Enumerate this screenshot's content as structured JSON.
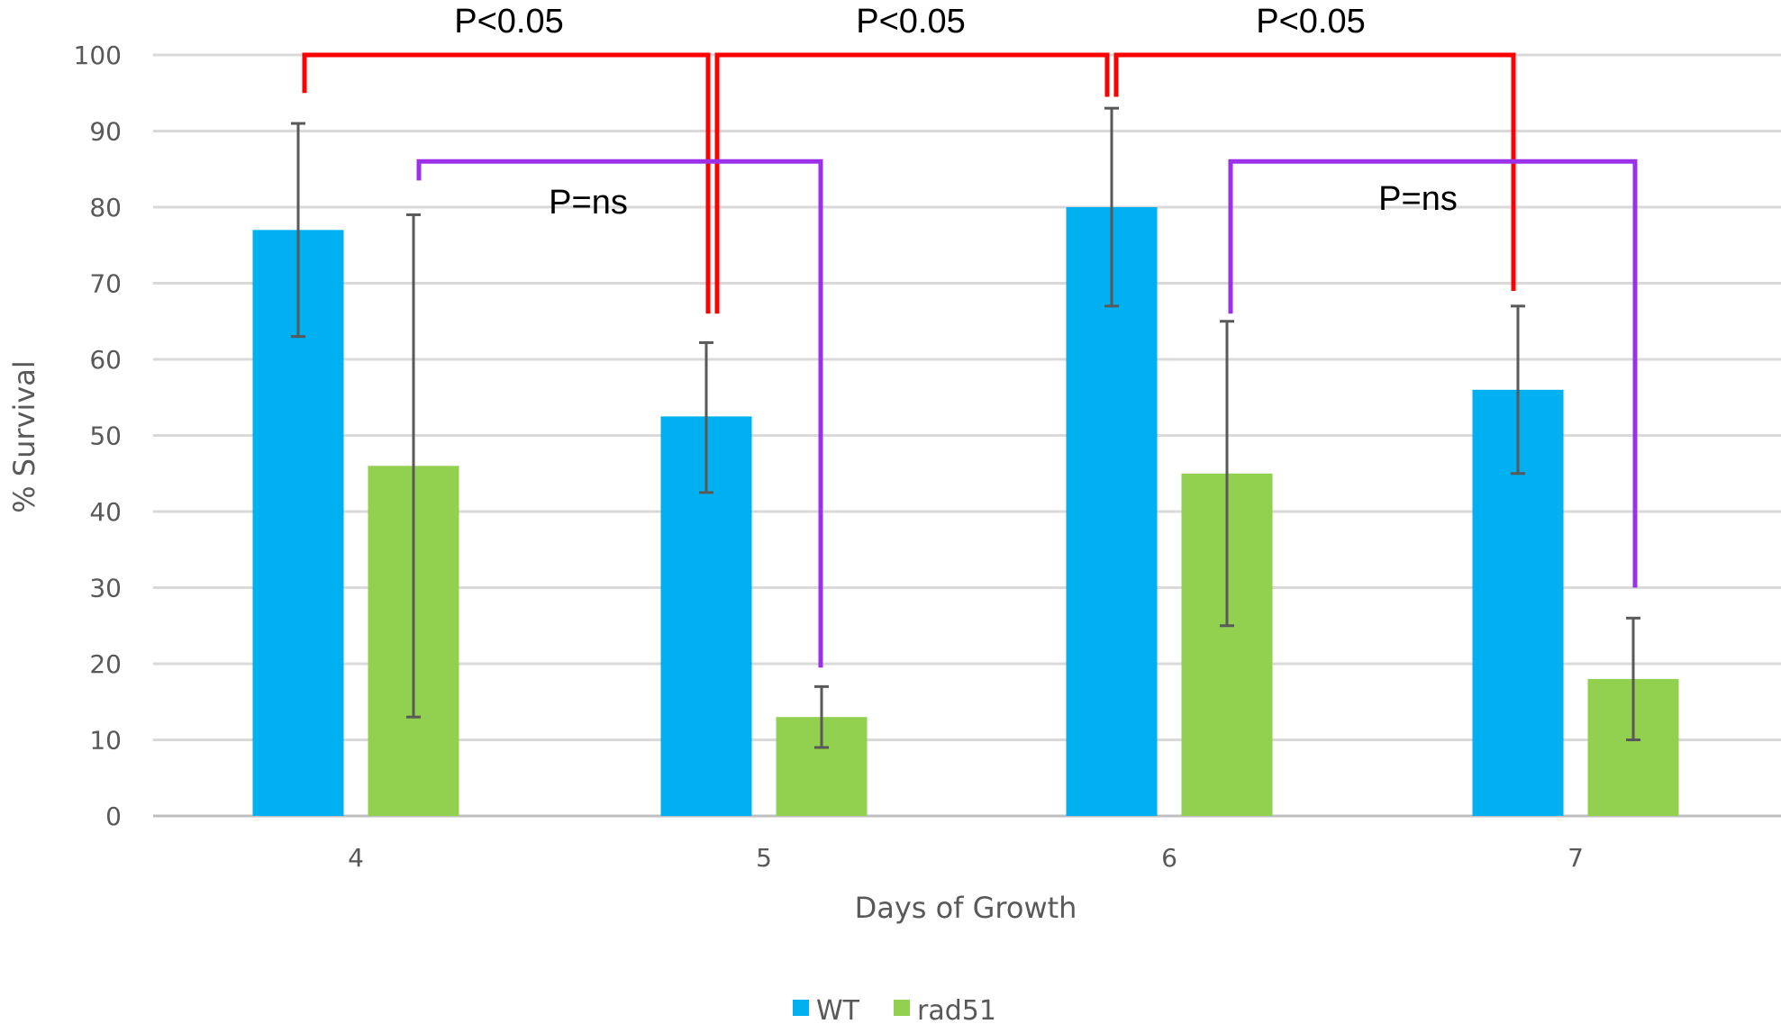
{
  "chart_data": {
    "type": "bar",
    "categories": [
      "4",
      "5",
      "6",
      "7"
    ],
    "series": [
      {
        "name": "WT",
        "color": "#00b0f0",
        "values": [
          77,
          52.5,
          80,
          56
        ],
        "error_low": [
          63,
          42.5,
          67,
          45
        ],
        "error_high": [
          91,
          62.2,
          93,
          67
        ]
      },
      {
        "name": "rad51",
        "color": "#92d050",
        "values": [
          46,
          13,
          45,
          18
        ],
        "error_low": [
          13,
          9,
          25,
          10
        ],
        "error_high": [
          79,
          17,
          65,
          26
        ]
      }
    ],
    "yticks": [
      "0",
      "10",
      "20",
      "30",
      "40",
      "50",
      "60",
      "70",
      "80",
      "90",
      "100"
    ],
    "ylim": [
      0,
      100
    ],
    "xlabel": "Days of Growth",
    "ylabel": "% Survival",
    "grid": true,
    "legend": {
      "position": "bottom",
      "entries": [
        "WT",
        "rad51"
      ]
    },
    "annotations": [
      {
        "text": "P<0.05",
        "color": "#ff0000",
        "compares": [
          "WT day 4",
          "WT day 5"
        ],
        "bracket_y": 100,
        "left_end": 95,
        "right_end": 66
      },
      {
        "text": "P<0.05",
        "color": "#ff0000",
        "compares": [
          "WT day 5",
          "WT day 6"
        ],
        "bracket_y": 100,
        "left_end": 66,
        "right_end": 94.5
      },
      {
        "text": "P<0.05",
        "color": "#ff0000",
        "compares": [
          "WT day 6",
          "WT day 7"
        ],
        "bracket_y": 100,
        "left_end": 94.5,
        "right_end": 69
      },
      {
        "text": "P=ns",
        "color": "#9b30e8",
        "compares": [
          "rad51 day 4",
          "rad51 day 5"
        ],
        "bracket_y": 86,
        "left_end": 83.5,
        "right_end": 19.5
      },
      {
        "text": "P=ns",
        "color": "#9b30e8",
        "compares": [
          "rad51 day 6",
          "rad51 day 7"
        ],
        "bracket_y": 86,
        "left_end": 66,
        "right_end": 30
      }
    ]
  }
}
